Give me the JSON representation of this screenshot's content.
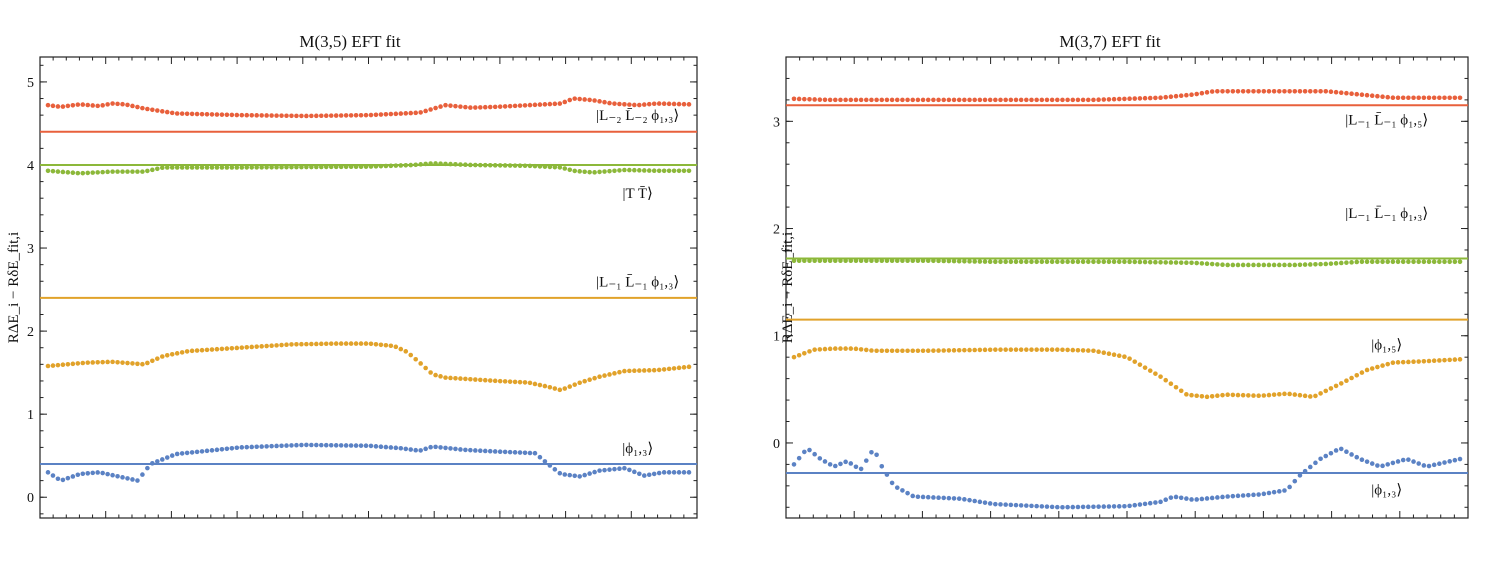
{
  "colors": {
    "red": "#e8603c",
    "green": "#8cb83a",
    "orange": "#e1a22a",
    "blue": "#5b82c4"
  },
  "chart_data": [
    {
      "type": "scatter",
      "title": "M(3,5) EFT fit",
      "ylabel": "RΔE_i − RδE_fit,i",
      "ylim": [
        -0.25,
        5.3
      ],
      "yticks": [
        0,
        1,
        2,
        3,
        4,
        5
      ],
      "x_range": [
        0,
        1
      ],
      "grid": false,
      "series": [
        {
          "color_key": "red",
          "level": 4.4,
          "label": "|L₋₂ L̄₋₂ ϕ₁,₃⟩",
          "label_pos": {
            "x": 0.92,
            "y": 4.54
          },
          "points": [
            [
              0.0,
              4.72
            ],
            [
              0.02,
              4.7
            ],
            [
              0.05,
              4.73
            ],
            [
              0.08,
              4.71
            ],
            [
              0.1,
              4.74
            ],
            [
              0.12,
              4.73
            ],
            [
              0.15,
              4.68
            ],
            [
              0.2,
              4.62
            ],
            [
              0.3,
              4.6
            ],
            [
              0.4,
              4.59
            ],
            [
              0.5,
              4.6
            ],
            [
              0.58,
              4.63
            ],
            [
              0.62,
              4.72
            ],
            [
              0.66,
              4.69
            ],
            [
              0.7,
              4.7
            ],
            [
              0.75,
              4.72
            ],
            [
              0.8,
              4.74
            ],
            [
              0.82,
              4.8
            ],
            [
              0.85,
              4.78
            ],
            [
              0.88,
              4.74
            ],
            [
              0.92,
              4.72
            ],
            [
              0.95,
              4.74
            ],
            [
              1.0,
              4.73
            ]
          ]
        },
        {
          "color_key": "green",
          "level": 4.0,
          "label": "|T T̄⟩",
          "label_pos": {
            "x": 0.92,
            "y": 3.6
          },
          "points": [
            [
              0.0,
              3.93
            ],
            [
              0.05,
              3.9
            ],
            [
              0.1,
              3.92
            ],
            [
              0.15,
              3.92
            ],
            [
              0.18,
              3.97
            ],
            [
              0.3,
              3.97
            ],
            [
              0.5,
              3.98
            ],
            [
              0.57,
              4.0
            ],
            [
              0.6,
              4.02
            ],
            [
              0.66,
              4.0
            ],
            [
              0.75,
              3.99
            ],
            [
              0.8,
              3.97
            ],
            [
              0.82,
              3.93
            ],
            [
              0.85,
              3.91
            ],
            [
              0.9,
              3.94
            ],
            [
              0.95,
              3.93
            ],
            [
              1.0,
              3.93
            ]
          ]
        },
        {
          "color_key": "orange",
          "level": 2.4,
          "label": "|L₋₁ L̄₋₁ ϕ₁,₃⟩",
          "label_pos": {
            "x": 0.92,
            "y": 2.54
          },
          "points": [
            [
              0.0,
              1.58
            ],
            [
              0.03,
              1.6
            ],
            [
              0.06,
              1.62
            ],
            [
              0.1,
              1.63
            ],
            [
              0.15,
              1.6
            ],
            [
              0.18,
              1.7
            ],
            [
              0.22,
              1.76
            ],
            [
              0.3,
              1.8
            ],
            [
              0.38,
              1.84
            ],
            [
              0.45,
              1.85
            ],
            [
              0.5,
              1.85
            ],
            [
              0.54,
              1.82
            ],
            [
              0.56,
              1.75
            ],
            [
              0.58,
              1.62
            ],
            [
              0.6,
              1.48
            ],
            [
              0.62,
              1.44
            ],
            [
              0.66,
              1.42
            ],
            [
              0.7,
              1.4
            ],
            [
              0.75,
              1.38
            ],
            [
              0.78,
              1.33
            ],
            [
              0.8,
              1.29
            ],
            [
              0.83,
              1.38
            ],
            [
              0.86,
              1.45
            ],
            [
              0.9,
              1.52
            ],
            [
              0.95,
              1.53
            ],
            [
              1.0,
              1.57
            ]
          ]
        },
        {
          "color_key": "blue",
          "level": 0.4,
          "label": "|ϕ₁,₃⟩",
          "label_pos": {
            "x": 0.92,
            "y": 0.53
          },
          "points": [
            [
              0.0,
              0.3
            ],
            [
              0.02,
              0.2
            ],
            [
              0.05,
              0.28
            ],
            [
              0.08,
              0.3
            ],
            [
              0.11,
              0.25
            ],
            [
              0.14,
              0.2
            ],
            [
              0.16,
              0.4
            ],
            [
              0.2,
              0.52
            ],
            [
              0.3,
              0.6
            ],
            [
              0.4,
              0.63
            ],
            [
              0.5,
              0.62
            ],
            [
              0.55,
              0.59
            ],
            [
              0.58,
              0.56
            ],
            [
              0.6,
              0.61
            ],
            [
              0.65,
              0.57
            ],
            [
              0.7,
              0.55
            ],
            [
              0.76,
              0.53
            ],
            [
              0.78,
              0.4
            ],
            [
              0.8,
              0.28
            ],
            [
              0.83,
              0.25
            ],
            [
              0.86,
              0.32
            ],
            [
              0.9,
              0.35
            ],
            [
              0.93,
              0.26
            ],
            [
              0.96,
              0.3
            ],
            [
              1.0,
              0.3
            ]
          ]
        }
      ]
    },
    {
      "type": "scatter",
      "title": "M(3,7) EFT fit",
      "ylabel": "RΔE_i − RδE_fit,i",
      "ylim": [
        -0.7,
        3.6
      ],
      "yticks": [
        0,
        1,
        2,
        3
      ],
      "x_range": [
        0,
        1
      ],
      "grid": false,
      "series": [
        {
          "color_key": "red",
          "level": 3.15,
          "label": "|L₋₁ L̄₋₁ ϕ₁,₅⟩",
          "label_pos": {
            "x": 0.89,
            "y": 2.97
          },
          "points": [
            [
              0.0,
              3.21
            ],
            [
              0.05,
              3.2
            ],
            [
              0.1,
              3.2
            ],
            [
              0.2,
              3.2
            ],
            [
              0.3,
              3.2
            ],
            [
              0.45,
              3.2
            ],
            [
              0.55,
              3.22
            ],
            [
              0.6,
              3.25
            ],
            [
              0.63,
              3.28
            ],
            [
              0.7,
              3.28
            ],
            [
              0.75,
              3.28
            ],
            [
              0.8,
              3.28
            ],
            [
              0.85,
              3.25
            ],
            [
              0.9,
              3.22
            ],
            [
              0.95,
              3.22
            ],
            [
              1.0,
              3.22
            ]
          ]
        },
        {
          "color_key": "green",
          "level": 1.72,
          "label": "|L₋₁ L̄₋₁ ϕ₁,₃⟩",
          "label_pos": {
            "x": 0.89,
            "y": 2.1
          },
          "points": [
            [
              0.0,
              1.7
            ],
            [
              0.1,
              1.7
            ],
            [
              0.2,
              1.7
            ],
            [
              0.3,
              1.69
            ],
            [
              0.4,
              1.69
            ],
            [
              0.5,
              1.69
            ],
            [
              0.6,
              1.68
            ],
            [
              0.65,
              1.66
            ],
            [
              0.7,
              1.66
            ],
            [
              0.75,
              1.66
            ],
            [
              0.8,
              1.67
            ],
            [
              0.85,
              1.69
            ],
            [
              0.9,
              1.69
            ],
            [
              0.95,
              1.69
            ],
            [
              1.0,
              1.69
            ]
          ]
        },
        {
          "color_key": "orange",
          "level": 1.15,
          "label": "|ϕ₁,₅⟩",
          "label_pos": {
            "x": 0.89,
            "y": 0.87
          },
          "points": [
            [
              0.0,
              0.8
            ],
            [
              0.03,
              0.87
            ],
            [
              0.06,
              0.88
            ],
            [
              0.09,
              0.88
            ],
            [
              0.12,
              0.86
            ],
            [
              0.2,
              0.86
            ],
            [
              0.3,
              0.87
            ],
            [
              0.4,
              0.87
            ],
            [
              0.45,
              0.86
            ],
            [
              0.5,
              0.8
            ],
            [
              0.55,
              0.62
            ],
            [
              0.59,
              0.45
            ],
            [
              0.62,
              0.43
            ],
            [
              0.65,
              0.45
            ],
            [
              0.7,
              0.44
            ],
            [
              0.74,
              0.46
            ],
            [
              0.78,
              0.43
            ],
            [
              0.82,
              0.55
            ],
            [
              0.86,
              0.68
            ],
            [
              0.9,
              0.75
            ],
            [
              0.94,
              0.76
            ],
            [
              1.0,
              0.78
            ]
          ]
        },
        {
          "color_key": "blue",
          "level": -0.28,
          "label": "|ϕ₁,₃⟩",
          "label_pos": {
            "x": 0.89,
            "y": -0.48
          },
          "points": [
            [
              0.0,
              -0.2
            ],
            [
              0.02,
              -0.05
            ],
            [
              0.04,
              -0.15
            ],
            [
              0.06,
              -0.22
            ],
            [
              0.08,
              -0.17
            ],
            [
              0.1,
              -0.25
            ],
            [
              0.12,
              -0.05
            ],
            [
              0.13,
              -0.2
            ],
            [
              0.15,
              -0.4
            ],
            [
              0.18,
              -0.5
            ],
            [
              0.25,
              -0.52
            ],
            [
              0.3,
              -0.57
            ],
            [
              0.4,
              -0.6
            ],
            [
              0.5,
              -0.59
            ],
            [
              0.55,
              -0.55
            ],
            [
              0.57,
              -0.5
            ],
            [
              0.6,
              -0.53
            ],
            [
              0.65,
              -0.5
            ],
            [
              0.7,
              -0.48
            ],
            [
              0.74,
              -0.44
            ],
            [
              0.76,
              -0.3
            ],
            [
              0.79,
              -0.15
            ],
            [
              0.82,
              -0.05
            ],
            [
              0.85,
              -0.15
            ],
            [
              0.88,
              -0.22
            ],
            [
              0.92,
              -0.15
            ],
            [
              0.95,
              -0.22
            ],
            [
              1.0,
              -0.15
            ]
          ]
        }
      ]
    }
  ]
}
